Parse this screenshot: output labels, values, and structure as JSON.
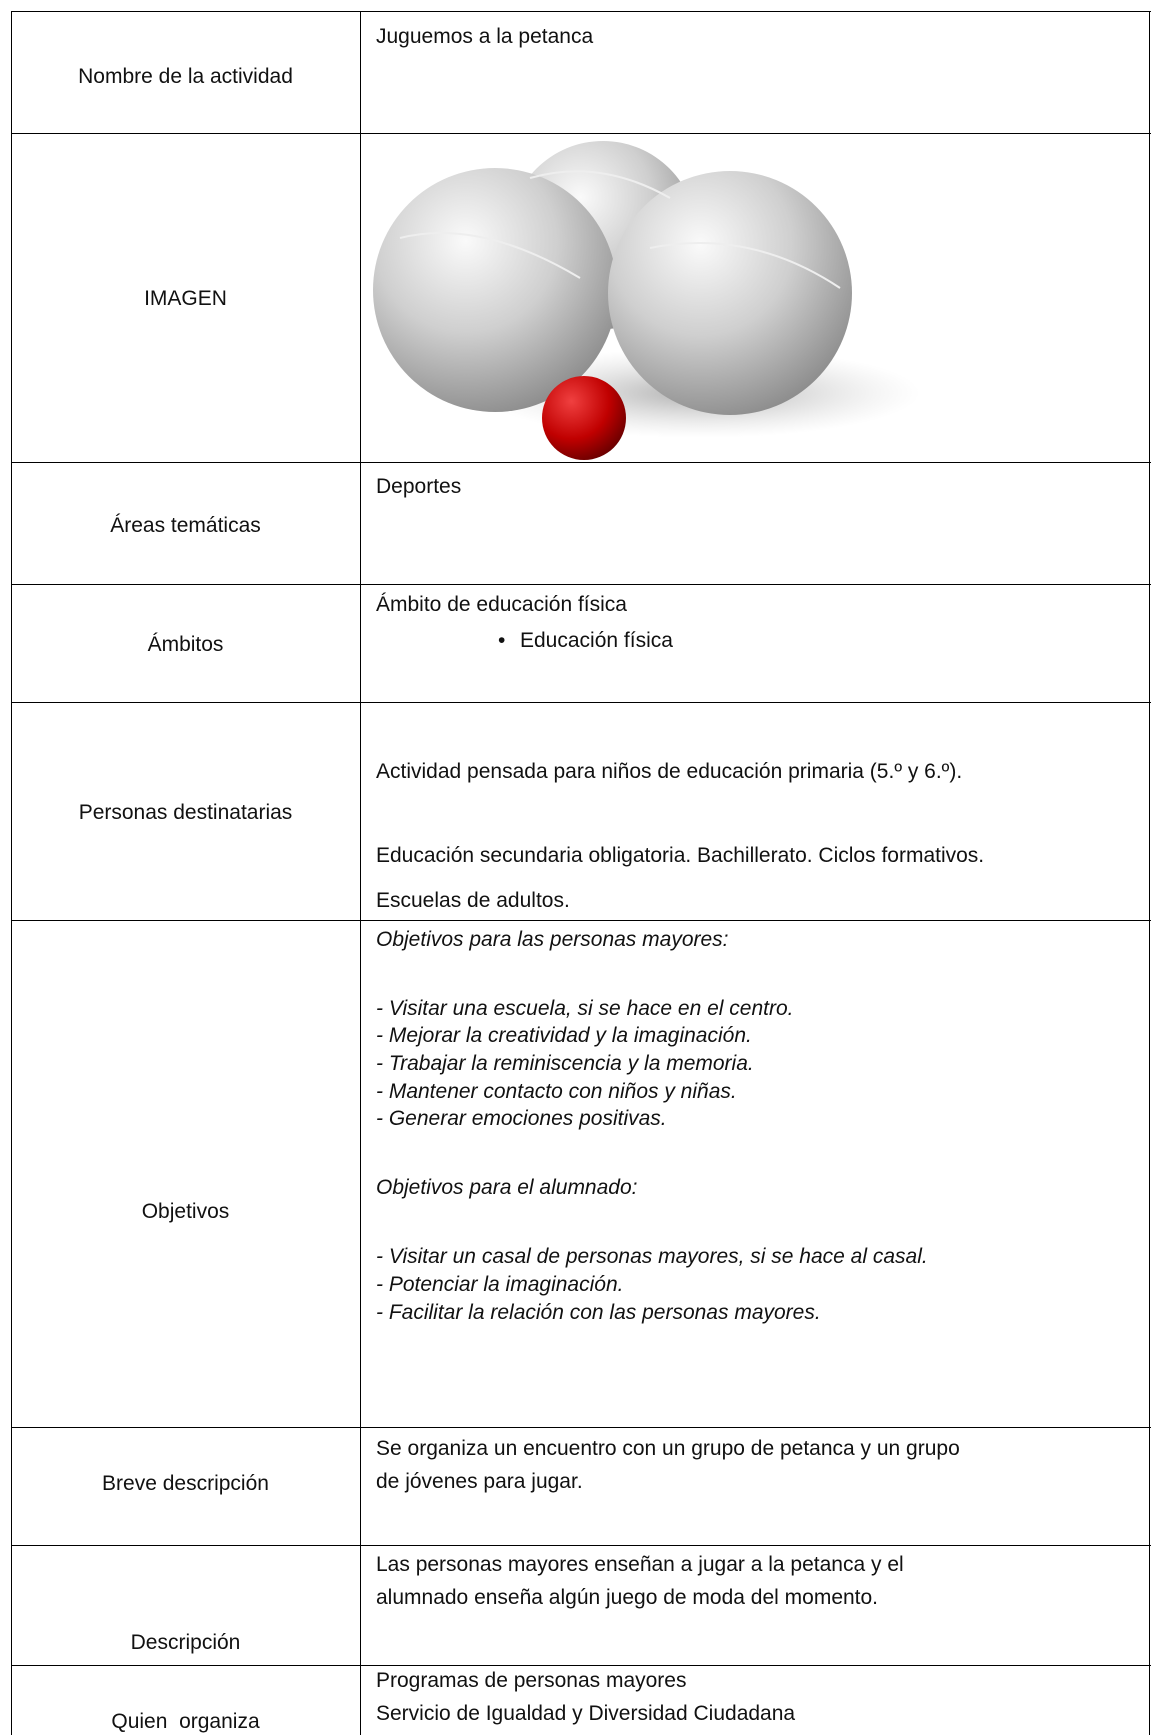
{
  "table": {
    "rows": [
      {
        "label": "Nombre de la actividad",
        "lines": [
          "Juguemos a la petanca"
        ]
      },
      {
        "label": "IMAGEN"
      },
      {
        "label": "Áreas temáticas",
        "lines": [
          "Deportes"
        ]
      },
      {
        "label": "Ámbitos",
        "lines": [
          "Ámbito de educación física"
        ],
        "bullets": [
          "Educación física"
        ]
      },
      {
        "label": "Personas destinatarias",
        "lines": [
          "Actividad pensada para niños de educación primaria (5.º y 6.º).",
          "Educación secundaria obligatoria. Bachillerato. Ciclos formativos.",
          "Escuelas de adultos."
        ]
      },
      {
        "label": "Objetivos",
        "lines": [
          "Objetivos para las personas mayores:",
          "- Visitar una escuela, si se hace en el centro.",
          "- Mejorar la creatividad y la imaginación.",
          "- Trabajar la reminiscencia y la memoria.",
          "- Mantener contacto con niños y niñas.",
          "- Generar emociones positivas.",
          "Objetivos para el alumnado:",
          "- Visitar un casal de personas mayores, si se hace al casal.",
          "- Potenciar la imaginación.",
          "- Facilitar la relación con las personas mayores."
        ]
      },
      {
        "label": "Breve descripción",
        "lines": [
          "Se organiza un encuentro con un grupo de petanca y un grupo",
          "de jóvenes para jugar."
        ]
      },
      {
        "label": "Descripción",
        "lines": [
          "Las personas mayores enseñan a jugar a la petanca y el",
          "alumnado enseña algún juego de moda del momento."
        ]
      },
      {
        "label": "Quien  organiza",
        "lines": [
          "Programas de personas mayores",
          "Servicio de Igualdad y Diversidad Ciudadana"
        ]
      }
    ]
  }
}
